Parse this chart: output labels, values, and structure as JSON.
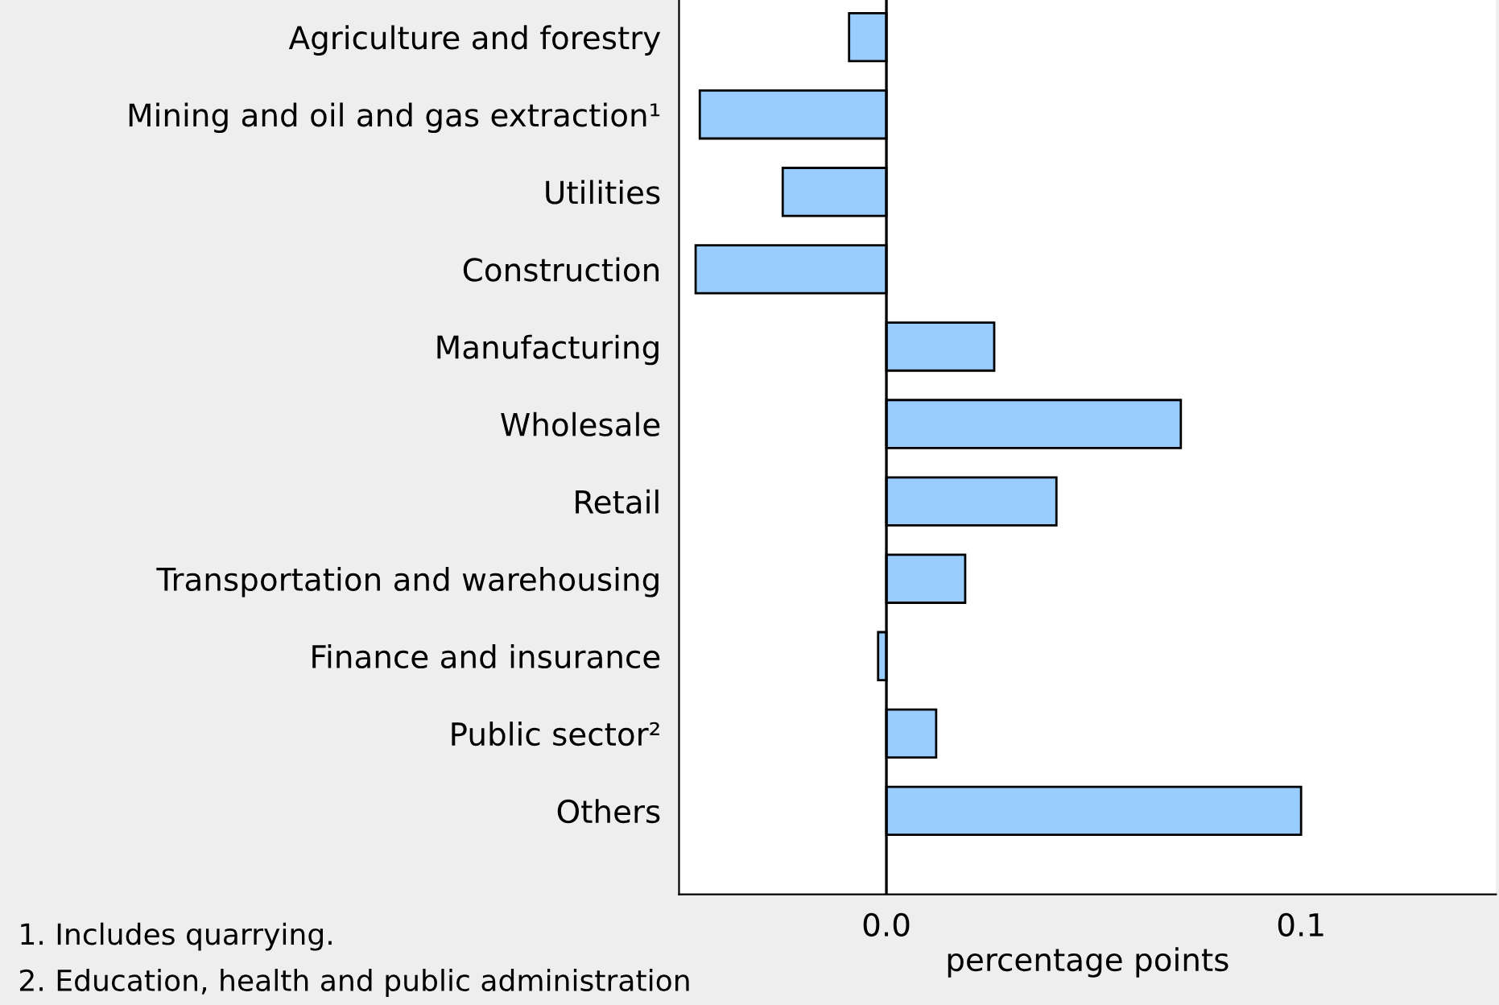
{
  "chart_data": {
    "type": "bar",
    "orientation": "horizontal",
    "categories": [
      "Agriculture and forestry",
      "Mining and oil and gas extraction¹",
      "Utilities",
      "Construction",
      "Manufacturing",
      "Wholesale",
      "Retail",
      "Transportation and warehousing",
      "Finance and insurance",
      "Public sector²",
      "Others"
    ],
    "values": [
      -0.009,
      -0.045,
      -0.025,
      -0.046,
      0.026,
      0.071,
      0.041,
      0.019,
      -0.002,
      0.012,
      0.1
    ],
    "color": "#99ccff",
    "xlim": [
      -0.05,
      0.147
    ],
    "xticks": [
      {
        "value": 0,
        "label": "0.0"
      },
      {
        "value": 0.1,
        "label": "0.1"
      }
    ],
    "xlabel": "percentage points",
    "ref_lines": [
      {
        "axis": "x",
        "value": 0,
        "color": "#000000"
      }
    ],
    "annotations": [
      "1. Includes quarrying.",
      "2. Education, health and public administration"
    ],
    "grid": false
  }
}
